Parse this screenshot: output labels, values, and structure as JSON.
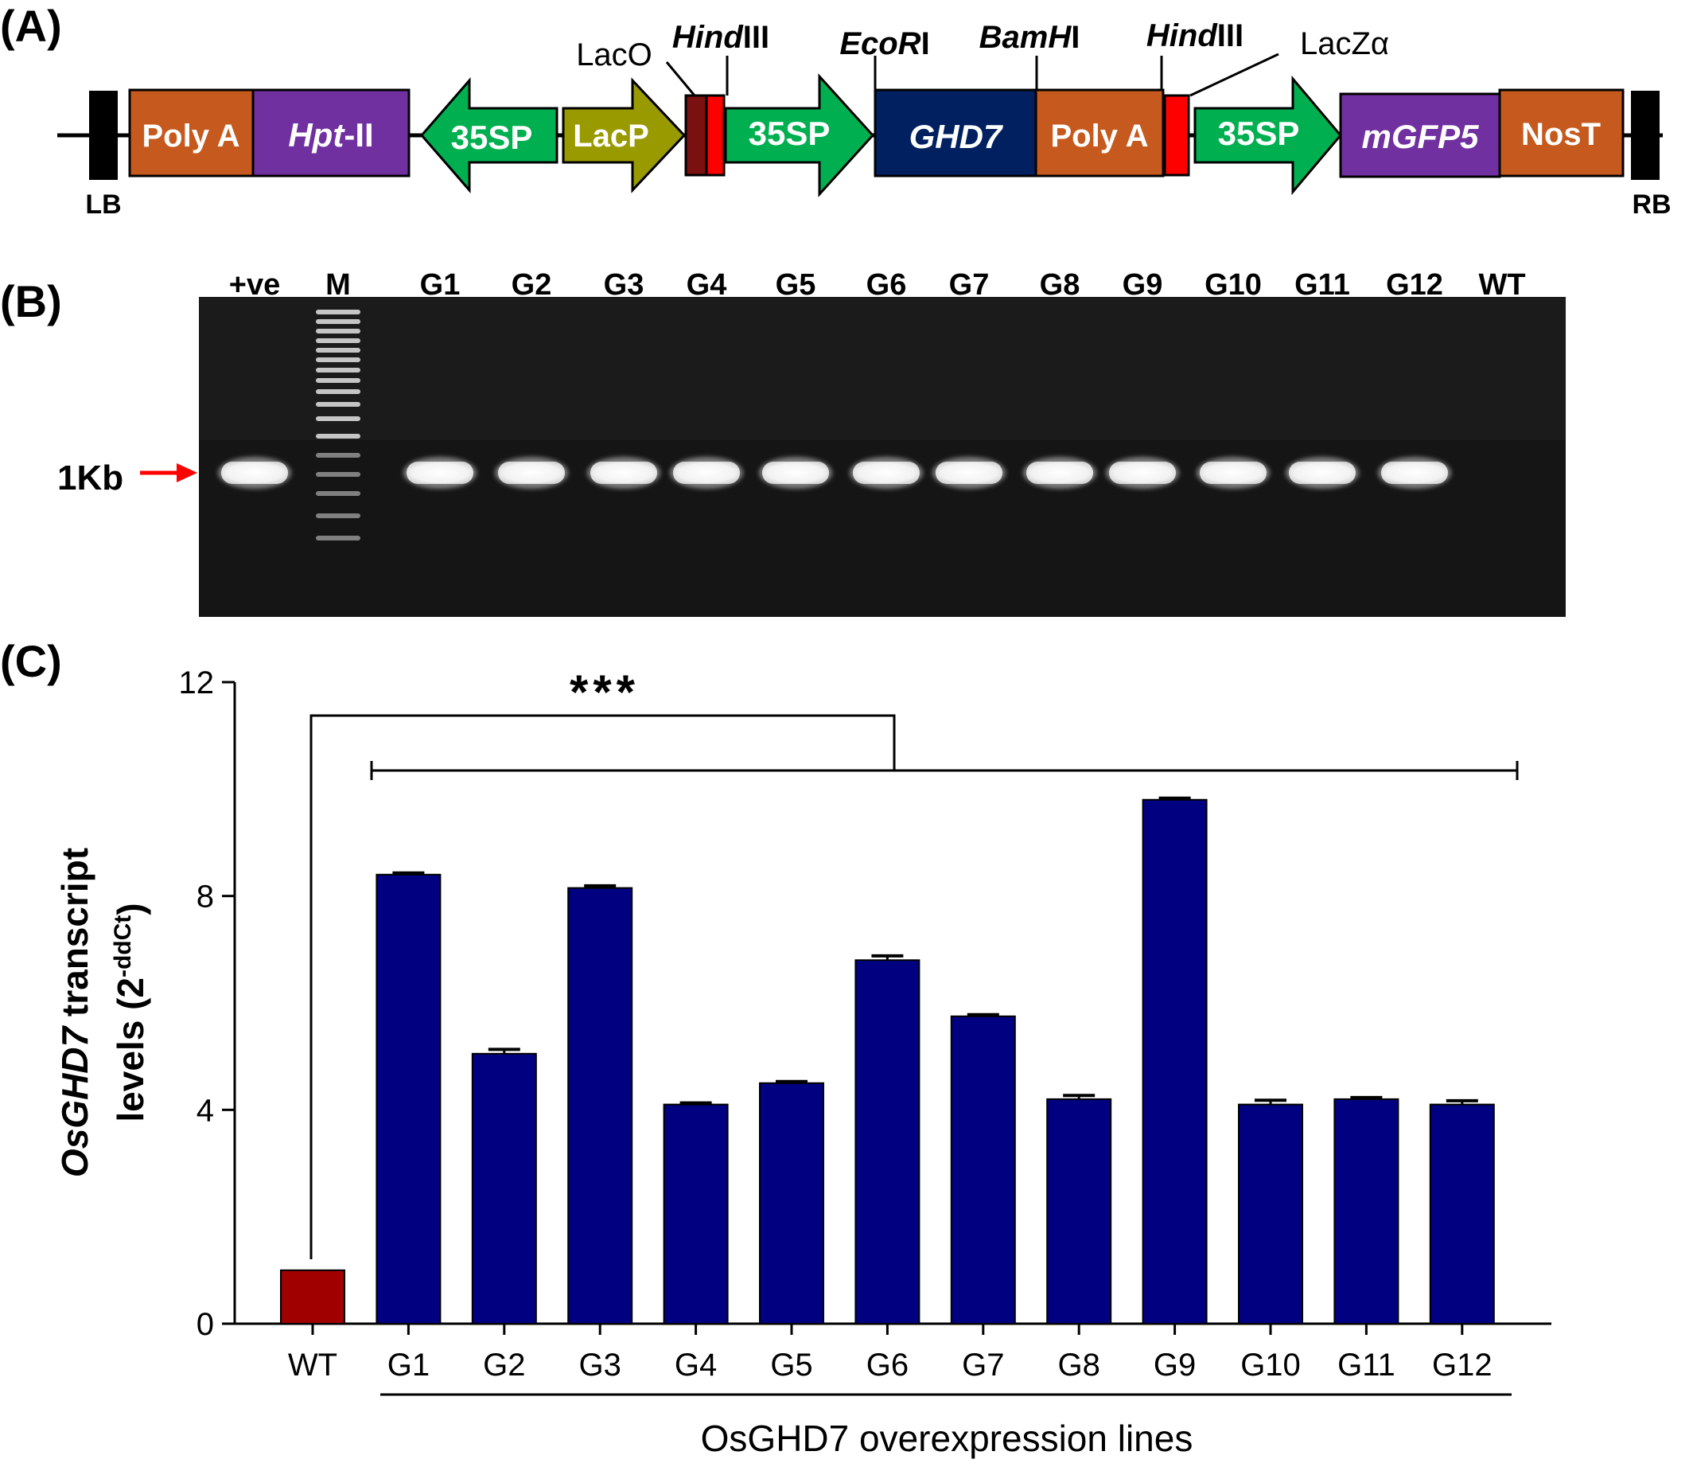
{
  "panel_labels": {
    "a": "(A)",
    "b": "(B)",
    "c": "(C)"
  },
  "construct": {
    "left_border": "LB",
    "right_border": "RB",
    "elements": [
      {
        "label": "Poly A",
        "color": "#c65a1e"
      },
      {
        "label_pre": "Hpt",
        "label_post": "-II",
        "color": "#7030a0"
      },
      {
        "label": "35SP",
        "color": "#00b050",
        "direction": "left"
      },
      {
        "label": "LacP",
        "color": "#999900",
        "direction": "right"
      },
      {
        "label": "35SP",
        "color": "#00b050",
        "direction": "right"
      },
      {
        "label": "GHD7",
        "color": "#002060"
      },
      {
        "label": "Poly A",
        "color": "#c65a1e"
      },
      {
        "label": "35SP",
        "color": "#00b050",
        "direction": "right"
      },
      {
        "label": "mGFP5",
        "color": "#7030a0"
      },
      {
        "label": "NosT",
        "color": "#c65a1e"
      }
    ],
    "site_labels": {
      "laco": "LacO",
      "hind1_italic": "Hind",
      "hind1_rest": "III",
      "ecori_italic": "EcoR",
      "ecori_rest": "I",
      "bamhi_italic": "BamH",
      "bamhi_rest": "I",
      "hind2_italic": "Hind",
      "hind2_rest": "III",
      "laczalpha": "LacZα"
    },
    "colors": {
      "laco_box": "#7a1010",
      "site_box": "#ff0000",
      "border_block": "#000000"
    }
  },
  "gel": {
    "lanes": [
      "+ve",
      "M",
      "G1",
      "G2",
      "G3",
      "G4",
      "G5",
      "G6",
      "G7",
      "G8",
      "G9",
      "G10",
      "G11",
      "G12",
      "WT"
    ],
    "band_present": [
      true,
      false,
      true,
      true,
      true,
      true,
      true,
      true,
      true,
      true,
      true,
      true,
      true,
      true,
      false
    ],
    "marker_label": "1Kb",
    "arrow_color": "#ff0000"
  },
  "chart_data": {
    "type": "bar",
    "categories": [
      "WT",
      "G1",
      "G2",
      "G3",
      "G4",
      "G5",
      "G6",
      "G7",
      "G8",
      "G9",
      "G10",
      "G11",
      "G12"
    ],
    "values": [
      1.0,
      8.4,
      5.05,
      8.15,
      4.1,
      4.5,
      6.8,
      5.75,
      4.2,
      9.8,
      4.1,
      4.2,
      4.1
    ],
    "errors": [
      0,
      0.03,
      0.08,
      0.04,
      0.03,
      0.03,
      0.08,
      0.03,
      0.07,
      0.03,
      0.08,
      0.03,
      0.07
    ],
    "colors": {
      "wt": "#a00000",
      "lines": "#000080"
    },
    "ylim": [
      0,
      12
    ],
    "yticks": [
      0,
      4,
      8,
      12
    ],
    "ylabel_italic": "OsGHD7",
    "ylabel_rest": " transcript",
    "ylabel_line2": "levels (2",
    "ylabel_sup": "-ddCt",
    "ylabel_close": ")",
    "xlabel": "OsGHD7 overexpression lines",
    "significance": "***"
  }
}
